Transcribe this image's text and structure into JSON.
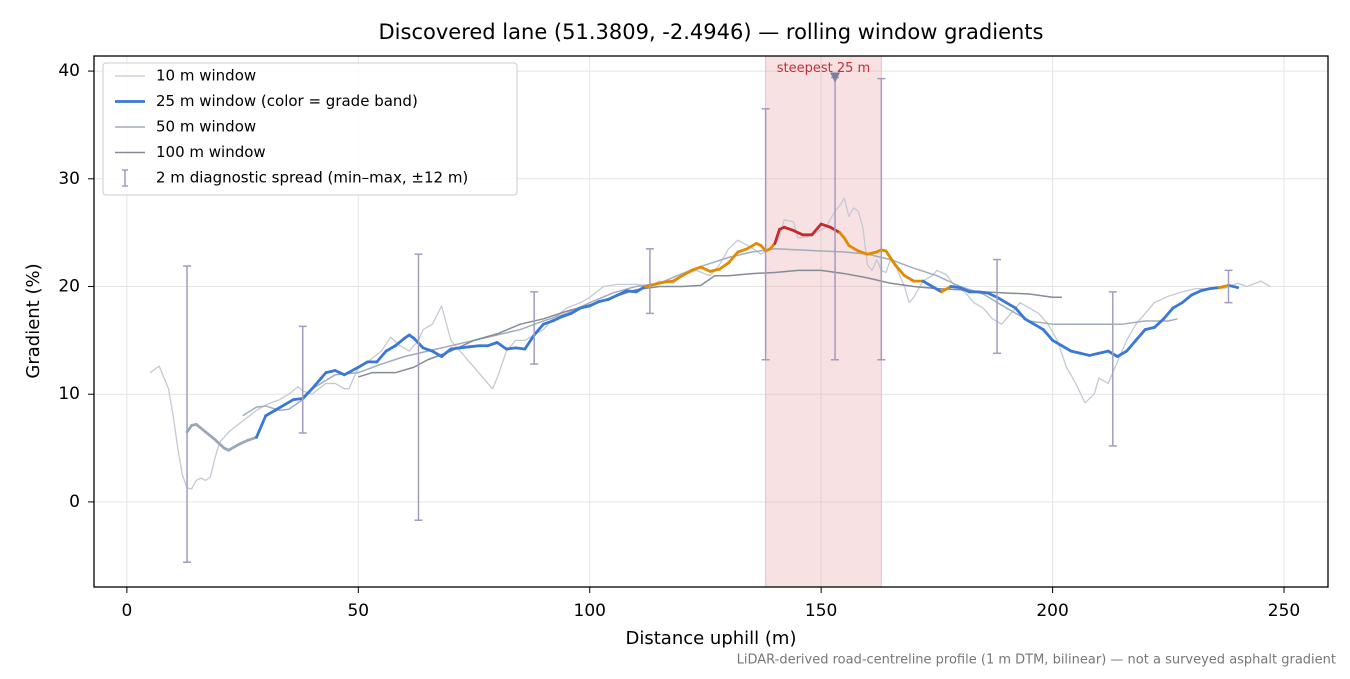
{
  "chart_data": {
    "type": "line",
    "title": "Discovered lane (51.3809, -2.4946) — rolling window gradients",
    "x_label": "Distance uphill (m)",
    "y_label": "Gradient (%)",
    "footnote": "LiDAR-derived road-centreline profile (1 m DTM, bilinear) — not a surveyed asphalt gradient",
    "xlim": [
      -7.1,
      259.5
    ],
    "ylim": [
      -7.9,
      41.4
    ],
    "xticks": [
      0,
      50,
      100,
      150,
      200,
      250
    ],
    "yticks": [
      0,
      10,
      20,
      30,
      40
    ],
    "grid": true,
    "legend": "upper left",
    "highlight_span": {
      "from": 138,
      "to": 163,
      "color": "#e8a8b0"
    },
    "annotation": {
      "text": "steepest 25 m",
      "x": 153,
      "y": 39.4,
      "color": "#c0303a",
      "marker_color": "#7a7f9a"
    },
    "series": [
      {
        "name": "10 m window",
        "color": "#c4c9d4",
        "width": 1.3,
        "x": [
          5,
          7,
          9,
          10,
          11,
          12,
          13,
          14,
          15,
          16,
          17,
          18,
          19,
          20,
          22,
          25,
          28,
          30,
          33,
          35,
          37,
          38,
          40,
          43,
          45,
          47,
          48,
          50,
          52,
          55,
          57,
          59,
          61,
          63,
          64,
          66,
          68,
          70,
          72,
          74,
          76,
          78,
          79,
          80,
          82,
          84,
          86,
          88,
          90,
          92,
          95,
          98,
          100,
          103,
          106,
          110,
          113,
          115,
          118,
          120,
          123,
          126,
          128,
          130,
          132,
          135,
          137,
          139,
          141,
          142,
          144,
          145,
          147,
          149,
          151,
          153,
          154,
          155,
          156,
          157,
          158,
          159,
          160,
          161,
          162,
          163,
          164,
          165,
          166,
          168,
          169,
          170,
          172,
          174,
          175,
          177,
          179,
          181,
          183,
          185,
          187,
          189,
          191,
          193,
          195,
          197,
          199,
          201,
          203,
          205,
          207,
          209,
          210,
          212,
          214,
          216,
          218,
          220,
          222,
          225,
          228,
          231,
          234,
          237,
          240,
          242,
          245,
          247
        ],
        "values": [
          12,
          12.6,
          10.5,
          8,
          5,
          2.5,
          1.3,
          1.2,
          2,
          2.2,
          2,
          2.3,
          4,
          5.5,
          6.5,
          7.5,
          8.5,
          9,
          9.5,
          10,
          10.7,
          10.3,
          10,
          11,
          11,
          10.5,
          10.5,
          12.5,
          13,
          14,
          15.3,
          14.5,
          14,
          15,
          16,
          16.5,
          18.2,
          15,
          14,
          13,
          12,
          11,
          10.5,
          11.5,
          14,
          15,
          15,
          15.5,
          16,
          17,
          18,
          18.5,
          19,
          20,
          20.2,
          20.2,
          20,
          20.5,
          20.3,
          21,
          21.5,
          21,
          22,
          23.5,
          24.3,
          23.6,
          23,
          23.5,
          24.5,
          26.2,
          26,
          24.5,
          24.6,
          25,
          25.5,
          27,
          27.5,
          28.2,
          26.5,
          27.3,
          27,
          25.5,
          22,
          21.5,
          22.5,
          21.5,
          21.3,
          22.5,
          22,
          20,
          18.5,
          19,
          20.5,
          21,
          21.5,
          21.1,
          20,
          19.5,
          18.5,
          18,
          17,
          16.5,
          17.5,
          18.5,
          18,
          17.5,
          16.5,
          15,
          12.5,
          11,
          9.2,
          10,
          11.5,
          11,
          13,
          15,
          16.5,
          17.5,
          18.5,
          19.1,
          19.5,
          19.8,
          19.8,
          19.8,
          20.3,
          20,
          20.5,
          20
        ]
      },
      {
        "name": "25 m window (color = grade band)",
        "color": "#3a78d8",
        "width": 2.8,
        "x": [
          13,
          14,
          15,
          17,
          19,
          21,
          22,
          24,
          26,
          28,
          30,
          32,
          34,
          36,
          38,
          40,
          42,
          43,
          45,
          47,
          50,
          52,
          54,
          56,
          58,
          60,
          61,
          62,
          64,
          66,
          68,
          70,
          72,
          74,
          76,
          78,
          80,
          82,
          84,
          86,
          88,
          90,
          92,
          94,
          96,
          98,
          100,
          102,
          104,
          106,
          108,
          110,
          112,
          114,
          116,
          118,
          120,
          122,
          124,
          126,
          128,
          130,
          132,
          134,
          136,
          137,
          138,
          139,
          140,
          141,
          142,
          144,
          146,
          148,
          150,
          152,
          154,
          155,
          156,
          158,
          160,
          162,
          163,
          164,
          166,
          168,
          170,
          172,
          174,
          176,
          178,
          180,
          182,
          184,
          186,
          188,
          190,
          192,
          194,
          196,
          198,
          200,
          202,
          204,
          206,
          208,
          210,
          212,
          214,
          216,
          218,
          220,
          222,
          224,
          226,
          228,
          230,
          232,
          234,
          236,
          238,
          240
        ],
        "values": [
          6.5,
          7.1,
          7.2,
          6.5,
          5.8,
          5,
          4.8,
          5.3,
          5.7,
          6,
          8,
          8.5,
          9,
          9.5,
          9.6,
          10.5,
          11.5,
          12,
          12.2,
          11.8,
          12.5,
          13,
          13,
          14,
          14.5,
          15.2,
          15.5,
          15.2,
          14.3,
          14,
          13.5,
          14.2,
          14.3,
          14.4,
          14.5,
          14.5,
          14.8,
          14.2,
          14.3,
          14.2,
          15.5,
          16.5,
          16.8,
          17.2,
          17.5,
          18,
          18.2,
          18.6,
          18.8,
          19.2,
          19.6,
          19.5,
          20,
          20.2,
          20.4,
          20.5,
          21,
          21.5,
          21.8,
          21.4,
          21.6,
          22.2,
          23.2,
          23.5,
          24,
          23.8,
          23.3,
          23.5,
          24,
          25.3,
          25.5,
          25.2,
          24.8,
          24.8,
          25.8,
          25.5,
          25,
          24.5,
          23.8,
          23.3,
          23,
          23.2,
          23.4,
          23.3,
          22,
          21,
          20.5,
          20.5,
          20,
          19.5,
          20,
          19.9,
          19.5,
          19.5,
          19.4,
          19,
          18.5,
          18,
          17,
          16.5,
          16,
          15,
          14.5,
          14,
          13.8,
          13.6,
          13.8,
          14,
          13.5,
          14,
          15,
          16,
          16.2,
          17,
          18,
          18.5,
          19.2,
          19.6,
          19.8,
          19.9,
          20.1,
          19.9
        ],
        "colors": [
          "#9aa8ba",
          "#9aa8ba",
          "#9aa8ba",
          "#9aa8ba",
          "#9aa8ba",
          "#9aa8ba",
          "#9aa8ba",
          "#9aa8ba",
          "#9aa8ba",
          "#9aa8ba",
          "#3a78d8",
          "#3a78d8",
          "#3a78d8",
          "#3a78d8",
          "#3a78d8",
          "#3a78d8",
          "#3a78d8",
          "#3a78d8",
          "#3a78d8",
          "#3a78d8",
          "#3a78d8",
          "#3a78d8",
          "#3a78d8",
          "#3a78d8",
          "#3a78d8",
          "#3a78d8",
          "#3a78d8",
          "#3a78d8",
          "#3a78d8",
          "#3a78d8",
          "#3a78d8",
          "#3a78d8",
          "#3a78d8",
          "#3a78d8",
          "#3a78d8",
          "#3a78d8",
          "#3a78d8",
          "#3a78d8",
          "#3a78d8",
          "#3a78d8",
          "#3a78d8",
          "#3a78d8",
          "#3a78d8",
          "#3a78d8",
          "#3a78d8",
          "#3a78d8",
          "#3a78d8",
          "#3a78d8",
          "#3a78d8",
          "#3a78d8",
          "#3a78d8",
          "#3a78d8",
          "#3a78d8",
          "#e08b00",
          "#e08b00",
          "#e08b00",
          "#e08b00",
          "#e08b00",
          "#e08b00",
          "#e08b00",
          "#e08b00",
          "#e08b00",
          "#e08b00",
          "#e08b00",
          "#e08b00",
          "#e08b00",
          "#e08b00",
          "#e08b00",
          "#e08b00",
          "#c42a30",
          "#c42a30",
          "#c42a30",
          "#c42a30",
          "#c42a30",
          "#c42a30",
          "#c42a30",
          "#c42a30",
          "#e08b00",
          "#e08b00",
          "#e08b00",
          "#e08b00",
          "#e08b00",
          "#e08b00",
          "#e08b00",
          "#e08b00",
          "#e08b00",
          "#e08b00",
          "#e08b00",
          "#3a78d8",
          "#3a78d8",
          "#e08b00",
          "#3a78d8",
          "#3a78d8",
          "#3a78d8",
          "#3a78d8",
          "#3a78d8",
          "#3a78d8",
          "#3a78d8",
          "#3a78d8",
          "#3a78d8",
          "#3a78d8",
          "#3a78d8",
          "#3a78d8",
          "#3a78d8",
          "#3a78d8",
          "#3a78d8",
          "#3a78d8",
          "#3a78d8",
          "#3a78d8",
          "#3a78d8",
          "#3a78d8",
          "#3a78d8",
          "#3a78d8",
          "#3a78d8",
          "#3a78d8",
          "#3a78d8",
          "#3a78d8",
          "#3a78d8",
          "#3a78d8",
          "#3a78d8",
          "#e08b00",
          "#3a78d8"
        ]
      },
      {
        "name": "50 m window",
        "color": "#a3acbb",
        "width": 1.5,
        "x": [
          25,
          28,
          30,
          33,
          35,
          38,
          40,
          45,
          50,
          55,
          60,
          65,
          70,
          75,
          80,
          85,
          90,
          95,
          100,
          105,
          110,
          115,
          120,
          125,
          130,
          135,
          140,
          145,
          150,
          155,
          160,
          165,
          170,
          175,
          180,
          185,
          190,
          195,
          200,
          205,
          210,
          215,
          220,
          225,
          227
        ],
        "values": [
          8,
          8.8,
          8.9,
          8.5,
          8.6,
          9.5,
          10.5,
          11.8,
          12,
          12.8,
          13.5,
          14,
          14.5,
          15,
          15.5,
          16,
          16.8,
          17.5,
          18.5,
          19.4,
          20,
          20.3,
          21.2,
          22,
          22.7,
          23.2,
          23.5,
          23.4,
          23.3,
          23.2,
          23,
          22.5,
          21.7,
          21,
          20,
          19.3,
          18,
          16.8,
          16.5,
          16.5,
          16.5,
          16.5,
          16.8,
          16.8,
          17
        ]
      },
      {
        "name": "100 m window",
        "color": "#858b98",
        "width": 1.5,
        "x": [
          50,
          53,
          58,
          62,
          65,
          70,
          75,
          80,
          85,
          90,
          95,
          100,
          105,
          110,
          115,
          120,
          124,
          127,
          130,
          135,
          140,
          145,
          150,
          155,
          160,
          165,
          170,
          175,
          180,
          185,
          190,
          195,
          200,
          202
        ],
        "values": [
          11.6,
          12,
          12,
          12.5,
          13.2,
          14,
          15,
          15.6,
          16.5,
          17,
          17.7,
          18.3,
          19,
          19.7,
          20,
          20,
          20.1,
          21,
          21,
          21.2,
          21.3,
          21.5,
          21.5,
          21.2,
          20.8,
          20.3,
          20,
          19.8,
          19.7,
          19.5,
          19.4,
          19.3,
          19,
          19
        ]
      }
    ],
    "error_bars": {
      "name": "2 m diagnostic spread (min–max, ±12 m)",
      "color": "#a39cc0",
      "x": [
        13,
        38,
        63,
        88,
        113,
        138,
        153,
        163,
        188,
        213,
        238
      ],
      "low": [
        -5.6,
        6.4,
        -1.7,
        12.8,
        17.5,
        13.2,
        13.2,
        13.2,
        13.8,
        5.2,
        18.5
      ],
      "high": [
        21.9,
        16.3,
        23,
        19.5,
        23.5,
        36.5,
        39.4,
        39.3,
        22.5,
        19.5,
        21.5
      ]
    }
  }
}
